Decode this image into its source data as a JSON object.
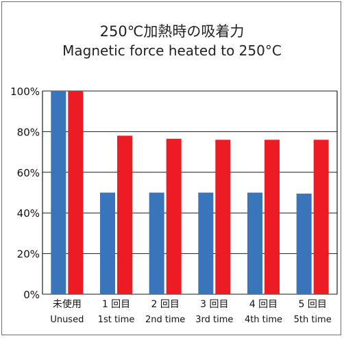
{
  "chart_data": {
    "type": "bar",
    "title": "250℃加熱時の吸着力",
    "subtitle": "Magnetic force heated to 250°C",
    "categories": [
      "未使用",
      "1 回目",
      "2 回目",
      "3 回目",
      "4 回目",
      "5 回目"
    ],
    "categories_en": [
      "Unused",
      "1st time",
      "2nd time",
      "3rd time",
      "4th time",
      "5th time"
    ],
    "series": [
      {
        "values": [
          100,
          50,
          50,
          50,
          50,
          49.5
        ],
        "color": "#3a74bb"
      },
      {
        "values": [
          100,
          78,
          76.5,
          76,
          76,
          76
        ],
        "color": "#ed1c24"
      }
    ],
    "yticks": [
      "0%",
      "20%",
      "40%",
      "60%",
      "80%",
      "100%"
    ],
    "ylim": [
      0,
      100
    ],
    "grid": true,
    "legend": "none"
  }
}
